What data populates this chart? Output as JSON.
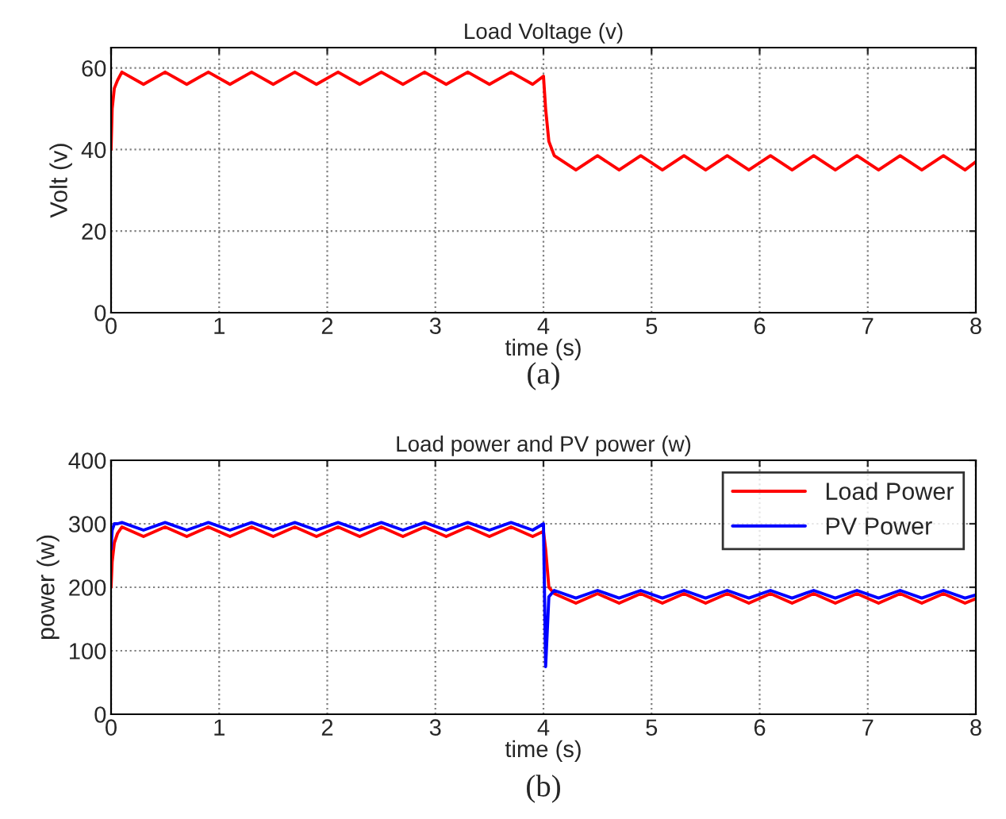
{
  "chart_data": [
    {
      "type": "line",
      "title": "Load Voltage (v)",
      "xlabel": "time (s)",
      "ylabel": "Volt (v)",
      "annotations": [
        "(a)"
      ],
      "x": [
        0,
        0.01,
        0.03,
        0.06,
        0.1,
        0.3,
        0.5,
        0.7,
        0.9,
        1.1,
        1.3,
        1.5,
        1.7,
        1.9,
        2.1,
        2.3,
        2.5,
        2.7,
        2.9,
        3.1,
        3.3,
        3.5,
        3.7,
        3.9,
        4.0,
        4.02,
        4.05,
        4.1,
        4.3,
        4.5,
        4.7,
        4.9,
        5.1,
        5.3,
        5.5,
        5.7,
        5.9,
        6.1,
        6.3,
        6.5,
        6.7,
        6.9,
        7.1,
        7.3,
        7.5,
        7.7,
        7.9,
        8.0
      ],
      "series": [
        {
          "color": "#ff0000",
          "values": [
            40,
            50,
            55,
            57,
            59,
            56,
            59,
            56,
            59,
            56,
            59,
            56,
            59,
            56,
            59,
            56,
            59,
            56,
            59,
            56,
            59,
            56,
            59,
            56,
            58,
            50,
            42,
            38.5,
            35,
            38.5,
            35,
            38.5,
            35,
            38.5,
            35,
            38.5,
            35,
            38.5,
            35,
            38.5,
            35,
            38.5,
            35,
            38.5,
            35,
            38.5,
            35,
            37
          ]
        }
      ],
      "xlim": [
        0,
        8
      ],
      "xticks": [
        0,
        1,
        2,
        3,
        4,
        5,
        6,
        7,
        8
      ],
      "ylim": [
        0,
        65
      ],
      "yticks": [
        0,
        20,
        40,
        60
      ],
      "grid": true,
      "legend": false
    },
    {
      "type": "line",
      "title": "Load power and PV power (w)",
      "xlabel": "time (s)",
      "ylabel": "power (w)",
      "annotations": [
        "(b)"
      ],
      "x": [
        0,
        0.01,
        0.03,
        0.06,
        0.1,
        0.3,
        0.5,
        0.7,
        0.9,
        1.1,
        1.3,
        1.5,
        1.7,
        1.9,
        2.1,
        2.3,
        2.5,
        2.7,
        2.9,
        3.1,
        3.3,
        3.5,
        3.7,
        3.9,
        4.0,
        4.02,
        4.05,
        4.1,
        4.3,
        4.5,
        4.7,
        4.9,
        5.1,
        5.3,
        5.5,
        5.7,
        5.9,
        6.1,
        6.3,
        6.5,
        6.7,
        6.9,
        7.1,
        7.3,
        7.5,
        7.7,
        7.9,
        8.0
      ],
      "series": [
        {
          "name": "Load Power",
          "color": "#ff0000",
          "values": [
            200,
            240,
            270,
            285,
            295,
            280,
            295,
            280,
            295,
            280,
            295,
            280,
            295,
            280,
            295,
            280,
            295,
            280,
            295,
            280,
            295,
            280,
            295,
            280,
            288,
            260,
            200,
            190,
            175,
            190,
            175,
            190,
            175,
            190,
            175,
            190,
            175,
            190,
            175,
            190,
            175,
            190,
            175,
            190,
            175,
            190,
            175,
            182
          ]
        },
        {
          "name": "PV Power",
          "color": "#0000ff",
          "values": [
            260,
            290,
            300,
            300,
            302,
            290,
            302,
            290,
            302,
            290,
            302,
            290,
            302,
            290,
            302,
            290,
            302,
            290,
            302,
            290,
            302,
            290,
            302,
            290,
            300,
            75,
            185,
            195,
            183,
            195,
            183,
            195,
            183,
            195,
            183,
            195,
            183,
            195,
            183,
            195,
            183,
            195,
            183,
            195,
            183,
            195,
            183,
            188
          ]
        }
      ],
      "xlim": [
        0,
        8
      ],
      "xticks": [
        0,
        1,
        2,
        3,
        4,
        5,
        6,
        7,
        8
      ],
      "ylim": [
        0,
        400
      ],
      "yticks": [
        0,
        100,
        200,
        300,
        400
      ],
      "grid": true,
      "legend": "top right"
    }
  ]
}
